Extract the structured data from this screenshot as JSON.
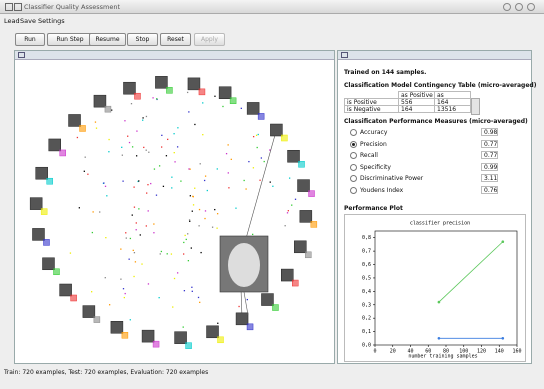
{
  "window": {
    "title": "Classifier Quality Assessment"
  },
  "menu": [
    "Lead",
    "Save",
    "Settings"
  ],
  "toolbar": [
    "Run",
    "Run Step",
    "Resume",
    "Stop",
    "Reset",
    "Apply"
  ],
  "summary": "Trained on 144 samples.",
  "contingency": {
    "title": "Classification Model Contingency Table (micro-averaged)",
    "columns": [
      "as Positive",
      "as Negative"
    ],
    "rows": [
      {
        "label": "is Positive",
        "values": [
          556,
          164
        ]
      },
      {
        "label": "is Negative",
        "values": [
          164,
          13516
        ]
      }
    ]
  },
  "measures": {
    "title": "Classificaton Performance Measures (micro-averaged)",
    "selected": "Precision",
    "items": [
      {
        "name": "Accuracy",
        "value": 0.98
      },
      {
        "name": "Precision",
        "value": 0.77
      },
      {
        "name": "Recall",
        "value": 0.77
      },
      {
        "name": "Specificity",
        "value": 0.99
      },
      {
        "name": "Discriminative Power",
        "value": 3.11
      },
      {
        "name": "Youdens Index",
        "value": 0.76
      }
    ]
  },
  "plot": {
    "heading": "Performance Plot",
    "chart_data": {
      "type": "line",
      "title": "classifier precision",
      "x_label": "number training samples",
      "xlim": [
        0,
        160
      ],
      "xticks": [
        0,
        20,
        40,
        60,
        80,
        100,
        120,
        140,
        160
      ],
      "ylim": [
        0,
        0.85
      ],
      "yticks": [
        {
          "value": 0,
          "label": "0,0"
        },
        {
          "value": 0.1,
          "label": "0,1"
        },
        {
          "value": 0.2,
          "label": "0,2"
        },
        {
          "value": 0.3,
          "label": "0,3"
        },
        {
          "value": 0.4,
          "label": "0,4"
        },
        {
          "value": 0.5,
          "label": "0,5"
        },
        {
          "value": 0.6,
          "label": "0,6"
        },
        {
          "value": 0.7,
          "label": "0,7"
        },
        {
          "value": 0.8,
          "label": "0,8"
        }
      ],
      "series": [
        {
          "color": "#5cc85c",
          "x": [
            72,
            144
          ],
          "values": [
            0.32,
            0.77
          ]
        },
        {
          "color": "#3a7de0",
          "x": [
            72,
            144
          ],
          "values": [
            0.05,
            0.05
          ]
        }
      ]
    }
  },
  "status": "Train: 720 examples, Test: 720 examples, Evaluation: 720 examples"
}
